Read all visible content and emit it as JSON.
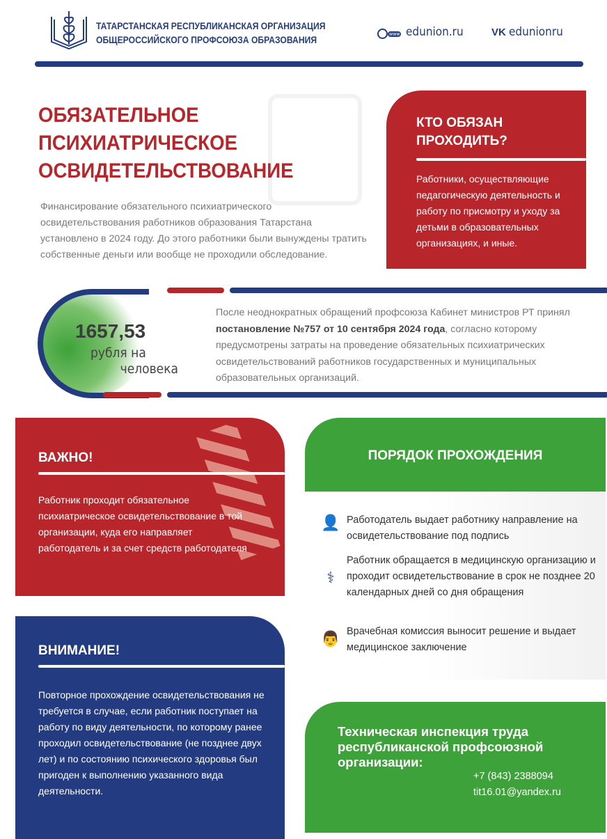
{
  "header": {
    "org_line1": "ТАТАРСТАНСКАЯ РЕСПУБЛИКАНСКАЯ ОРГАНИЗАЦИЯ",
    "org_line2": "ОБЩЕРОССИЙСКОГО ПРОФСОЮЗА ОБРАЗОВАНИЯ",
    "website": "edunion.ru",
    "www_badge": "www",
    "vk": "edunionru",
    "vk_logo": "VK"
  },
  "title": {
    "line1": "ОБЯЗАТЕЛЬНОЕ",
    "line2": "ПСИХИАТРИЧЕСКОЕ",
    "line3": "ОСВИДЕТЕЛЬСТВОВАНИЕ"
  },
  "intro": "Финансирование обязательного психиатрического освидетельствования работников образования Татарстана установлено в 2024 году. До этого работники были вынуждены тратить собственные деньги или вообще не проходили обследование.",
  "who": {
    "title": "КТО ОБЯЗАН ПРОХОДИТЬ?",
    "text": "Работники, осуществляющие педагогическую деятельность и работу по присмотру и уходу за детьми в образовательных организациях, и иные."
  },
  "cost": {
    "amount": "1657,53",
    "unit_line1": "рубля на",
    "unit_line2": "человека"
  },
  "decree": {
    "before": "После неоднократных обращений профсоюза Кабинет министров РТ принял ",
    "bold": "постановление №757 от 10 сентября 2024 года",
    "after": ", согласно которому предусмотрены затраты на проведение обязательных психиатрических освидетельствований работников государственных и муниципальных образовательных организаций."
  },
  "important": {
    "title": "ВАЖНО!",
    "text": "Работник проходит обязательное психиатрическое освидетельствование в той организации, куда его направляет работодатель и за счет средств работодателя"
  },
  "procedure": {
    "title": "ПОРЯДОК ПРОХОЖДЕНИЯ",
    "steps": [
      {
        "icon": "employer-icon",
        "text": "Работодатель выдает работнику направление на освидетельствование под подпись"
      },
      {
        "icon": "stethoscope-icon",
        "text": "Работник обращается в медицинскую организацию и проходит освидетельствование в срок не позднее 20 календарных дней со дня обращения"
      },
      {
        "icon": "doctor-icon",
        "text": "Врачебная комиссия выносит решение и выдает медицинское заключение"
      }
    ]
  },
  "attention": {
    "title": "ВНИМАНИЕ!",
    "text": "Повторное прохождение освидетельствования не требуется в случае, если работник поступает на работу по виду деятельности, по которому ранее проходил освидетельствование (не позднее двух лет) и по состоянию психического здоровья был пригоден к выполнению указанного вида деятельности."
  },
  "inspection": {
    "title": "Техническая инспекция труда республиканской профсоюзной организации:",
    "phone": "+7 (843) 2388094",
    "email": "tit16.01@yandex.ru"
  },
  "colors": {
    "red": "#b8262b",
    "navy": "#233b80",
    "green": "#3ea23a"
  }
}
